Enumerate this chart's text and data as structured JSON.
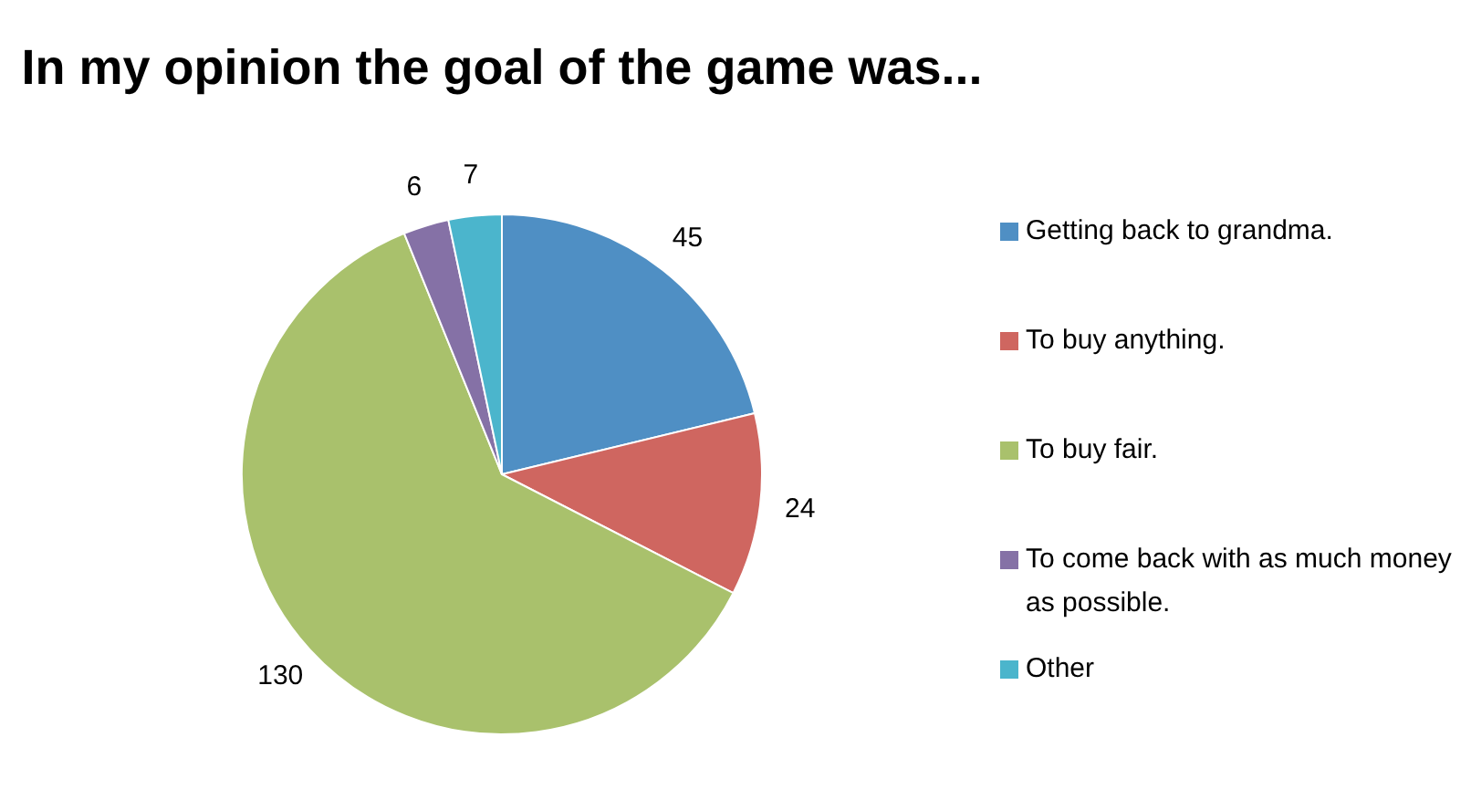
{
  "chart_data": {
    "type": "pie",
    "title": "In my opinion the goal of the game was...",
    "categories": [
      "Getting back to grandma.",
      "To buy anything.",
      "To buy fair.",
      "To come back with as much money as possible.",
      "Other"
    ],
    "values": [
      45,
      24,
      130,
      6,
      7
    ],
    "colors": [
      "#4f8fc4",
      "#cf6660",
      "#a9c16c",
      "#8571a6",
      "#4bb5cc"
    ],
    "data_labels": true,
    "legend": "right"
  }
}
